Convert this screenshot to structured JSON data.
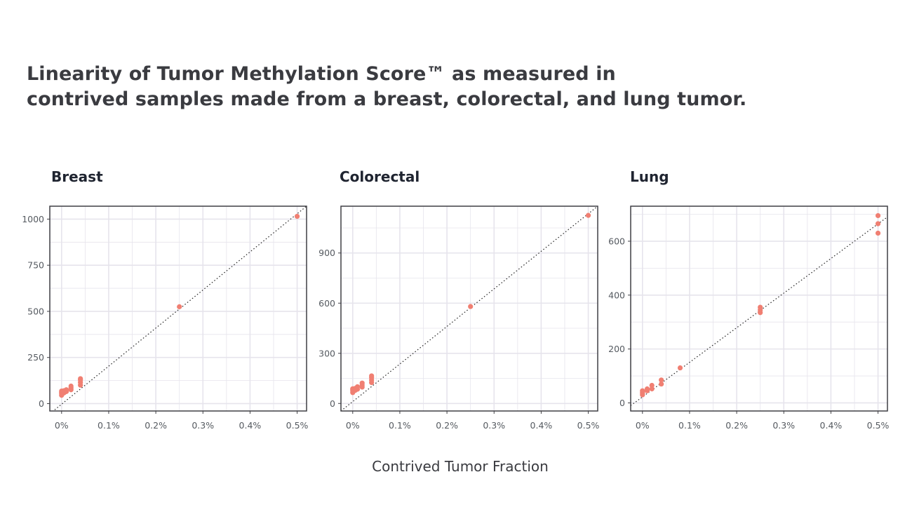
{
  "title_lines": [
    "Linearity of Tumor Methylation Score™ as measured in",
    "contrived samples made from a breast, colorectal, and lung tumor."
  ],
  "x_axis_title": "Contrived Tumor Fraction",
  "colors": {
    "point": "#f07f72",
    "grid": "#e6e4ec",
    "frame": "#3f3f44",
    "reference_line": "#222222"
  },
  "chart_data": [
    {
      "type": "scatter",
      "title": "Breast",
      "xlabel": "",
      "ylabel": "",
      "x_ticks": [
        0,
        0.1,
        0.2,
        0.3,
        0.4,
        0.5
      ],
      "x_tick_labels": [
        "0%",
        "0.1%",
        "0.2%",
        "0.3%",
        "0.4%",
        "0.5%"
      ],
      "y_ticks": [
        0,
        250,
        500,
        750,
        1000
      ],
      "y_tick_labels": [
        "0",
        "250",
        "500",
        "750",
        "1000"
      ],
      "xlim": [
        -0.025,
        0.52
      ],
      "ylim": [
        -40,
        1070
      ],
      "grid": true,
      "reference_line": {
        "style": "dotted",
        "from": [
          -0.025,
          -55
        ],
        "to": [
          0.52,
          1070
        ]
      },
      "points": [
        [
          0.0,
          45
        ],
        [
          0.0,
          55
        ],
        [
          0.0,
          60
        ],
        [
          0.0,
          68
        ],
        [
          0.005,
          58
        ],
        [
          0.005,
          70
        ],
        [
          0.01,
          65
        ],
        [
          0.01,
          75
        ],
        [
          0.02,
          75
        ],
        [
          0.02,
          85
        ],
        [
          0.02,
          95
        ],
        [
          0.04,
          100
        ],
        [
          0.04,
          115
        ],
        [
          0.04,
          128
        ],
        [
          0.04,
          135
        ],
        [
          0.25,
          525
        ],
        [
          0.5,
          1015
        ]
      ]
    },
    {
      "type": "scatter",
      "title": "Colorectal",
      "xlabel": "",
      "ylabel": "",
      "x_ticks": [
        0,
        0.1,
        0.2,
        0.3,
        0.4,
        0.5
      ],
      "x_tick_labels": [
        "0%",
        "0.1%",
        "0.2%",
        "0.3%",
        "0.4%",
        "0.5%"
      ],
      "y_ticks": [
        0,
        300,
        600,
        900
      ],
      "y_tick_labels": [
        "0",
        "300",
        "600",
        "900"
      ],
      "xlim": [
        -0.025,
        0.52
      ],
      "ylim": [
        -45,
        1180
      ],
      "grid": true,
      "reference_line": {
        "style": "dotted",
        "from": [
          -0.025,
          -45
        ],
        "to": [
          0.52,
          1180
        ]
      },
      "points": [
        [
          0.0,
          65
        ],
        [
          0.0,
          75
        ],
        [
          0.0,
          82
        ],
        [
          0.0,
          88
        ],
        [
          0.005,
          78
        ],
        [
          0.005,
          90
        ],
        [
          0.01,
          85
        ],
        [
          0.01,
          100
        ],
        [
          0.02,
          98
        ],
        [
          0.02,
          110
        ],
        [
          0.02,
          122
        ],
        [
          0.04,
          125
        ],
        [
          0.04,
          140
        ],
        [
          0.04,
          155
        ],
        [
          0.04,
          165
        ],
        [
          0.25,
          580
        ],
        [
          0.5,
          1125
        ]
      ]
    },
    {
      "type": "scatter",
      "title": "Lung",
      "xlabel": "",
      "ylabel": "",
      "x_ticks": [
        0,
        0.1,
        0.2,
        0.3,
        0.4,
        0.5
      ],
      "x_tick_labels": [
        "0%",
        "0.1%",
        "0.2%",
        "0.3%",
        "0.4%",
        "0.5%"
      ],
      "y_ticks": [
        0,
        200,
        400,
        600
      ],
      "y_tick_labels": [
        "0",
        "200",
        "400",
        "600"
      ],
      "xlim": [
        -0.025,
        0.52
      ],
      "ylim": [
        -30,
        730
      ],
      "grid": true,
      "reference_line": {
        "style": "dotted",
        "from": [
          -0.025,
          -10
        ],
        "to": [
          0.52,
          690
        ]
      },
      "points": [
        [
          0.0,
          30
        ],
        [
          0.0,
          35
        ],
        [
          0.0,
          40
        ],
        [
          0.0,
          45
        ],
        [
          0.01,
          45
        ],
        [
          0.01,
          52
        ],
        [
          0.02,
          52
        ],
        [
          0.02,
          65
        ],
        [
          0.04,
          70
        ],
        [
          0.04,
          85
        ],
        [
          0.08,
          130
        ],
        [
          0.25,
          335
        ],
        [
          0.25,
          345
        ],
        [
          0.25,
          355
        ],
        [
          0.5,
          630
        ],
        [
          0.5,
          665
        ],
        [
          0.5,
          695
        ]
      ]
    }
  ]
}
